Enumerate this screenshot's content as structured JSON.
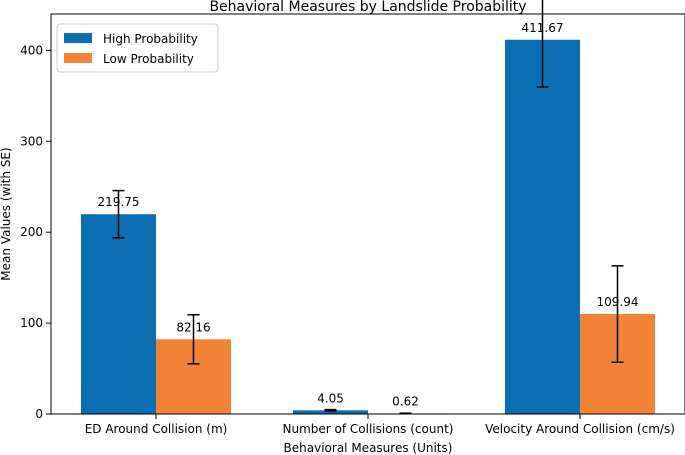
{
  "chart_data": {
    "type": "bar",
    "title": "Behavioral Measures by Landslide Probability",
    "xlabel": "Behavioral Measures (Units)",
    "ylabel": "Mean Values (with SE)",
    "categories": [
      "ED Around Collision (m)",
      "Number of Collisions (count)",
      "Velocity Around Collision (cm/s)"
    ],
    "series": [
      {
        "name": "High Probability",
        "color": "#0b6db2",
        "values": [
          219.75,
          4.05,
          411.67
        ],
        "value_labels": [
          "219.75",
          "4.05",
          "411.67"
        ],
        "error": [
          26,
          0.8,
          52
        ]
      },
      {
        "name": "Low Probability",
        "color": "#f28336",
        "values": [
          82.16,
          0.62,
          109.94
        ],
        "value_labels": [
          "82.16",
          "0.62",
          "109.94"
        ],
        "error": [
          27,
          0.3,
          53
        ]
      }
    ],
    "ylim": [
      0,
      440
    ],
    "yticks": [
      0,
      100,
      200,
      300,
      400
    ],
    "grid": false,
    "legend_position": "top-left"
  }
}
